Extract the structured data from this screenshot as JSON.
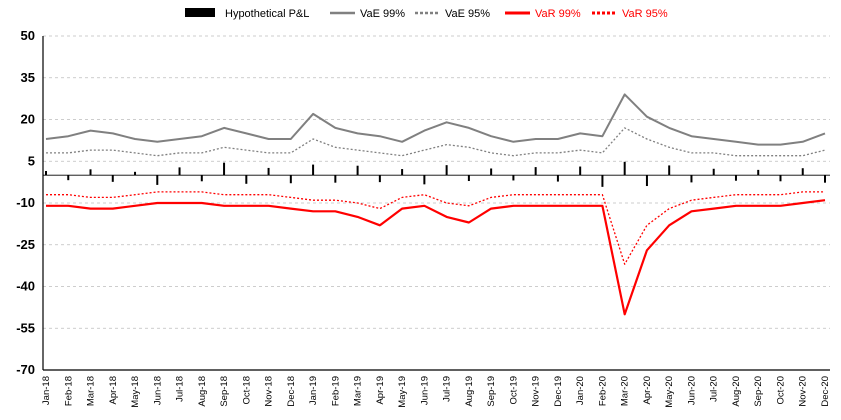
{
  "chart_data": {
    "type": "line",
    "title": "",
    "xlabel": "",
    "ylabel": "",
    "ylim": [
      -70,
      50
    ],
    "yticks": [
      50,
      35,
      20,
      5,
      -10,
      -25,
      -40,
      -55,
      -70
    ],
    "grid": "horizontal dashed",
    "legend_position": "top",
    "categories": [
      "Jan-18",
      "Feb-18",
      "Mar-18",
      "Apr-18",
      "May-18",
      "Jun-18",
      "Jul-18",
      "Aug-18",
      "Sep-18",
      "Oct-18",
      "Nov-18",
      "Dec-18",
      "Jan-19",
      "Feb-19",
      "Mar-19",
      "Apr-19",
      "May-19",
      "Jun-19",
      "Jul-19",
      "Aug-19",
      "Sep-19",
      "Oct-19",
      "Nov-19",
      "Dec-19",
      "Jan-20",
      "Feb-20",
      "Mar-20",
      "Apr-20",
      "May-20",
      "Jun-20",
      "Jul-20",
      "Aug-20",
      "Sep-20",
      "Oct-20",
      "Nov-20",
      "Dec-20"
    ],
    "series": [
      {
        "name": "Hypothetical P&L",
        "kind": "bar",
        "color": "#000000",
        "values": [
          1.5,
          -1.8,
          2.1,
          -2.4,
          1.2,
          -3.5,
          2.8,
          -2.2,
          4.5,
          -3.1,
          2.6,
          -2.9,
          3.8,
          -2.7,
          3.4,
          -2.5,
          2.2,
          -3.3,
          3.6,
          -2.1,
          2.4,
          -1.9,
          2.9,
          -2.3,
          3.1,
          -4.2,
          4.8,
          -3.9,
          3.5,
          -2.6,
          2.3,
          -2.0,
          1.9,
          -2.2,
          2.5,
          -2.7
        ]
      },
      {
        "name": "VaE 99%",
        "kind": "line",
        "color": "#808080",
        "dash": "solid",
        "values": [
          13,
          14,
          16,
          15,
          13,
          12,
          13,
          14,
          17,
          15,
          13,
          13,
          22,
          17,
          15,
          14,
          12,
          16,
          19,
          17,
          14,
          12,
          13,
          13,
          15,
          14,
          29,
          21,
          17,
          14,
          13,
          12,
          11,
          11,
          12,
          15
        ]
      },
      {
        "name": "VaE 95%",
        "kind": "line",
        "color": "#808080",
        "dash": "dotted",
        "values": [
          8,
          8,
          9,
          9,
          8,
          7,
          8,
          8,
          10,
          9,
          8,
          8,
          13,
          10,
          9,
          8,
          7,
          9,
          11,
          10,
          8,
          7,
          8,
          8,
          9,
          8,
          17,
          13,
          10,
          8,
          8,
          7,
          7,
          7,
          7,
          9
        ]
      },
      {
        "name": "VaR 99%",
        "kind": "line",
        "color": "#ff0000",
        "dash": "solid",
        "values": [
          -11,
          -11,
          -12,
          -12,
          -11,
          -10,
          -10,
          -10,
          -11,
          -11,
          -11,
          -12,
          -13,
          -13,
          -15,
          -18,
          -12,
          -11,
          -15,
          -17,
          -12,
          -11,
          -11,
          -11,
          -11,
          -11,
          -50,
          -27,
          -18,
          -13,
          -12,
          -11,
          -11,
          -11,
          -10,
          -9
        ]
      },
      {
        "name": "VaR 95%",
        "kind": "line",
        "color": "#ff0000",
        "dash": "dotted",
        "values": [
          -7,
          -7,
          -8,
          -8,
          -7,
          -6,
          -6,
          -6,
          -7,
          -7,
          -7,
          -8,
          -9,
          -9,
          -10,
          -12,
          -8,
          -7,
          -10,
          -11,
          -8,
          -7,
          -7,
          -7,
          -7,
          -7,
          -32,
          -18,
          -12,
          -9,
          -8,
          -7,
          -7,
          -7,
          -6,
          -6
        ]
      }
    ]
  }
}
